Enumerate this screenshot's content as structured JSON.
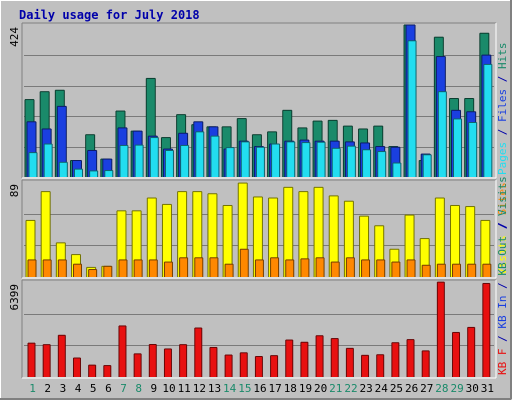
{
  "chart_data": {
    "type": "bar",
    "title": "Daily usage for July 2018",
    "colors": {
      "title": "#0000aa",
      "background": "#c0c0c0",
      "hits": "#1a8a6a",
      "files": "#1a3fe0",
      "pages": "#22ddf0",
      "visits": "#ffff00",
      "sites": "#ff8800",
      "kbf": "#e81010",
      "day_weekday": "#000000",
      "day_weekend": "#1a8a6a"
    },
    "categories": [
      "1",
      "2",
      "3",
      "4",
      "5",
      "6",
      "7",
      "8",
      "9",
      "10",
      "11",
      "12",
      "13",
      "14",
      "15",
      "16",
      "17",
      "18",
      "19",
      "20",
      "21",
      "22",
      "23",
      "24",
      "25",
      "26",
      "27",
      "28",
      "29",
      "30",
      "31"
    ],
    "weekend_days": [
      "1",
      "7",
      "8",
      "14",
      "15",
      "21",
      "22",
      "28",
      "29"
    ],
    "panels": [
      {
        "id": "top",
        "max_label": "424",
        "ylim": [
          0,
          424
        ],
        "side_legend": [
          {
            "text": "Hits",
            "color": "#1a8a6a"
          },
          {
            "text": " / ",
            "color": "#0000aa"
          },
          {
            "text": "Files",
            "color": "#1a3fe0"
          },
          {
            "text": " / ",
            "color": "#0000aa"
          },
          {
            "text": "Pages",
            "color": "#22ddf0"
          }
        ],
        "series": [
          {
            "name": "Hits",
            "values": [
              216,
              238,
              242,
              46,
              118,
              50,
              184,
              128,
              275,
              110,
              174,
              146,
              140,
              140,
              163,
              118,
              126,
              186,
              137,
              156,
              158,
              142,
              134,
              142,
              85,
              424,
              46,
              390,
              219,
              219,
              401
            ]
          },
          {
            "name": "Files",
            "values": [
              154,
              134,
              197,
              46,
              74,
              50,
              137,
              128,
              114,
              78,
              122,
              154,
              140,
              78,
              100,
              85,
              92,
              100,
              103,
              100,
              100,
              98,
              95,
              85,
              83,
              424,
              64,
              336,
              186,
              182,
              340
            ]
          },
          {
            "name": "Pages",
            "values": [
              68,
              92,
              41,
              22,
              17,
              18,
              88,
              89,
              110,
              74,
              88,
              126,
              114,
              82,
              98,
              83,
              92,
              98,
              96,
              97,
              80,
              86,
              76,
              71,
              39,
              380,
              62,
              238,
              162,
              152,
              314
            ]
          }
        ]
      },
      {
        "id": "middle",
        "max_label": "89",
        "ylim": [
          0,
          89
        ],
        "side_legend": [
          {
            "text": "Sites",
            "color": "#ff8800"
          },
          {
            "text": " / ",
            "color": "#0000aa"
          },
          {
            "text": "Visits",
            "color": "#ffff00"
          }
        ],
        "series": [
          {
            "name": "Visits",
            "values": [
              53,
              80,
              32,
              21,
              9,
              10,
              62,
              62,
              74,
              68,
              80,
              80,
              78,
              67,
              88,
              75,
              74,
              84,
              80,
              84,
              76,
              71,
              57,
              48,
              26,
              58,
              36,
              74,
              67,
              66,
              53
            ]
          },
          {
            "name": "Sites",
            "values": [
              16,
              16,
              16,
              12,
              7,
              10,
              16,
              16,
              16,
              14,
              18,
              18,
              18,
              12,
              26,
              16,
              18,
              16,
              17,
              18,
              14,
              18,
              16,
              16,
              14,
              16,
              11,
              12,
              12,
              12,
              12
            ]
          }
        ]
      },
      {
        "id": "bottom",
        "max_label": "6399",
        "ylim": [
          0,
          6399
        ],
        "side_legend": [
          {
            "text": "Visits",
            "color": "#1a8a6a"
          },
          {
            "text": " / ",
            "color": "#0000aa"
          },
          {
            "text": "KB Out",
            "color": "#1a8a6a"
          },
          {
            "text": " / ",
            "color": "#0000aa"
          },
          {
            "text": "KB In",
            "color": "#1a3fe0"
          },
          {
            "text": " / ",
            "color": "#0000aa"
          },
          {
            "text": "KB F",
            "color": "#e81010"
          }
        ],
        "series": [
          {
            "name": "KB F",
            "values": [
              2280,
              2180,
              2810,
              1280,
              800,
              770,
              3440,
              1560,
              2190,
              1890,
              2180,
              3300,
              1990,
              1480,
              1630,
              1380,
              1440,
              2490,
              2340,
              2780,
              2590,
              1930,
              1460,
              1500,
              2310,
              2520,
              1760,
              6390,
              3000,
              3340,
              6300
            ]
          }
        ]
      }
    ]
  }
}
